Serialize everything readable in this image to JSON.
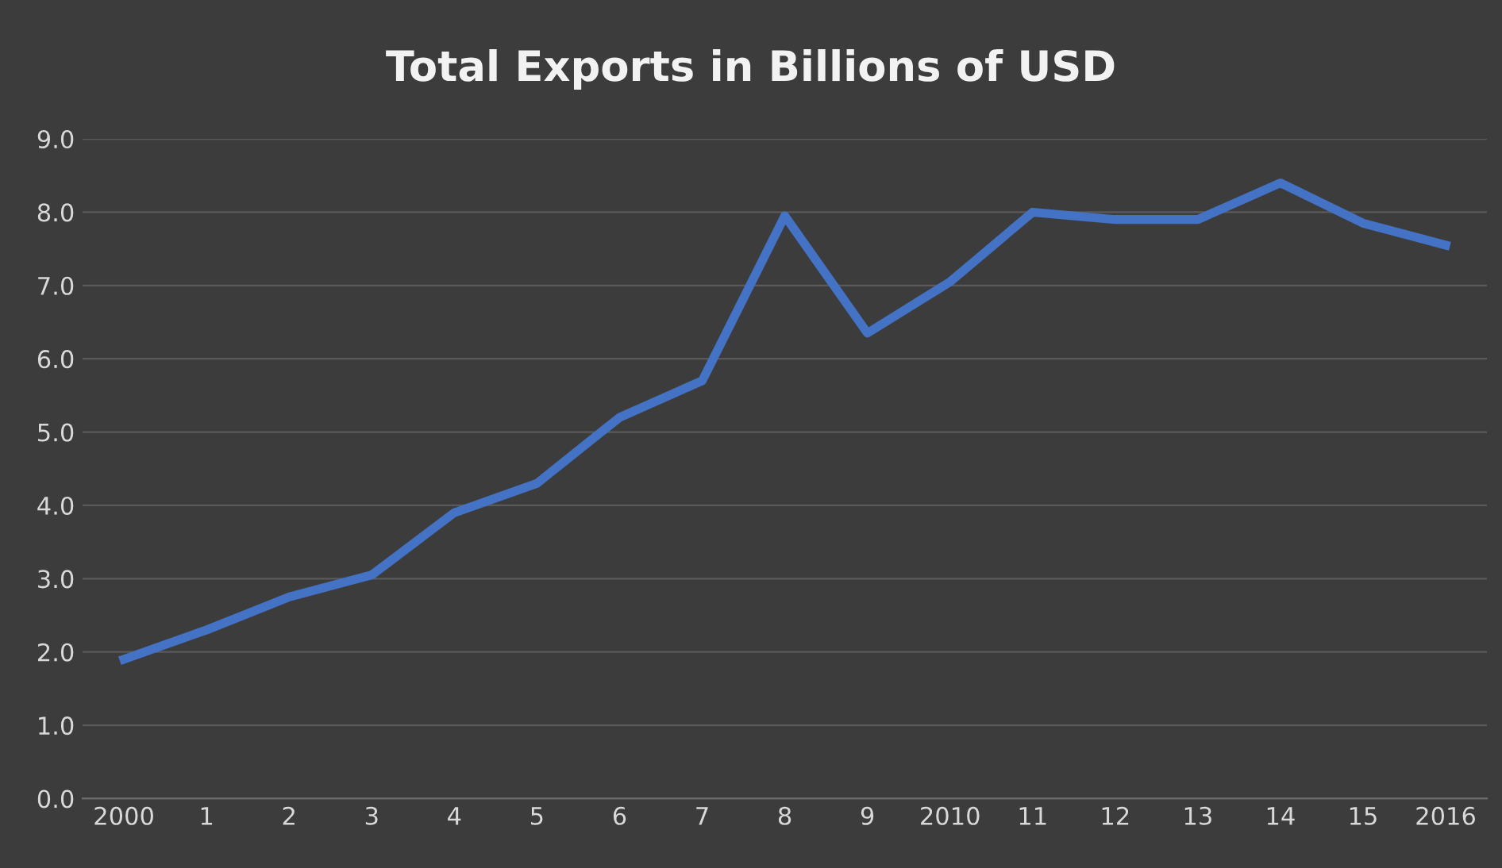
{
  "chart_data": {
    "type": "line",
    "title": "Total Exports in Billions of USD",
    "categories": [
      "2000",
      "1",
      "2",
      "3",
      "4",
      "5",
      "6",
      "7",
      "8",
      "9",
      "2010",
      "11",
      "12",
      "13",
      "14",
      "15",
      "2016"
    ],
    "series": [
      {
        "color": "#4472c4",
        "values": [
          1.9,
          2.3,
          2.75,
          3.05,
          3.9,
          4.3,
          5.2,
          5.7,
          7.95,
          6.35,
          7.05,
          8.0,
          7.9,
          7.9,
          8.4,
          7.85,
          7.55
        ]
      }
    ],
    "ylim": [
      0,
      9
    ],
    "yticks": [
      {
        "value": 0,
        "label": "0.0"
      },
      {
        "value": 1,
        "label": "1.0"
      },
      {
        "value": 2,
        "label": "2.0"
      },
      {
        "value": 3,
        "label": "3.0"
      },
      {
        "value": 4,
        "label": "4.0"
      },
      {
        "value": 5,
        "label": "5.0"
      },
      {
        "value": 6,
        "label": "6.0"
      },
      {
        "value": 7,
        "label": "7.0"
      },
      {
        "value": 8,
        "label": "8.0"
      },
      {
        "value": 9,
        "label": "9.0"
      }
    ],
    "grid": "y",
    "legend": false,
    "marker": "none",
    "line_style": "solid"
  }
}
